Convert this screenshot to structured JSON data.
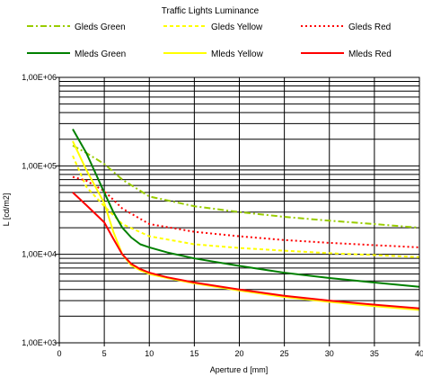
{
  "chart_data": {
    "type": "line",
    "title": "Traffic Lights Luminance",
    "xlabel": "Aperture d [mm]",
    "ylabel": "L [cd/m2]",
    "xlim": [
      0,
      40
    ],
    "ylim": [
      1000,
      1000000
    ],
    "yscale": "log",
    "grid": true,
    "legend_position": "top",
    "x_ticks": [
      0,
      5,
      10,
      15,
      20,
      25,
      30,
      35,
      40
    ],
    "x_tick_labels": [
      "0",
      "5",
      "10",
      "15",
      "20",
      "25",
      "30",
      "35",
      "40"
    ],
    "y_ticks": [
      1000,
      10000,
      100000,
      1000000
    ],
    "y_tick_labels": [
      "1,00E+03",
      "1,00E+04",
      "1,00E+05",
      "1,00E+06"
    ],
    "series": [
      {
        "name": "Gleds Green",
        "color": "#99cc00",
        "dash": "dashdot",
        "x": [
          1.5,
          3,
          5,
          7,
          10,
          15,
          20,
          25,
          30,
          35,
          40
        ],
        "y": [
          170000,
          140000,
          105000,
          70000,
          45000,
          35000,
          30000,
          26500,
          24000,
          22000,
          20000
        ]
      },
      {
        "name": "Gleds Yellow",
        "color": "#ffff00",
        "dash": "dash",
        "x": [
          1.5,
          3,
          5,
          7,
          10,
          15,
          20,
          25,
          30,
          35,
          40
        ],
        "y": [
          130000,
          58000,
          35000,
          22000,
          16000,
          13000,
          11800,
          11000,
          10300,
          9800,
          9300
        ]
      },
      {
        "name": "Gleds Red",
        "color": "#ff0000",
        "dash": "dot",
        "x": [
          1.5,
          3,
          5,
          7,
          10,
          15,
          20,
          25,
          30,
          35,
          40
        ],
        "y": [
          75000,
          68000,
          52000,
          33000,
          22000,
          18000,
          16000,
          14500,
          13500,
          12700,
          12000
        ]
      },
      {
        "name": "Mleds Green",
        "color": "#008000",
        "dash": "solid",
        "x": [
          1.5,
          3,
          5,
          6,
          7,
          8,
          9,
          10,
          12,
          15,
          20,
          25,
          30,
          35,
          40
        ],
        "y": [
          260000,
          140000,
          50000,
          30000,
          20000,
          15500,
          13000,
          12000,
          10500,
          9000,
          7400,
          6200,
          5400,
          4800,
          4300
        ]
      },
      {
        "name": "Mleds Yellow",
        "color": "#ffff00",
        "dash": "solid",
        "x": [
          1.5,
          3,
          5,
          6,
          7,
          8,
          9,
          10,
          12,
          15,
          20,
          25,
          30,
          35,
          40
        ],
        "y": [
          190000,
          90000,
          38000,
          18000,
          10000,
          7500,
          6600,
          6000,
          5400,
          4700,
          3900,
          3300,
          2900,
          2600,
          2350
        ]
      },
      {
        "name": "Mleds Red",
        "color": "#ff0000",
        "dash": "solid",
        "x": [
          1.5,
          3,
          5,
          6,
          7,
          8,
          9,
          10,
          12,
          15,
          20,
          25,
          30,
          35,
          40
        ],
        "y": [
          50000,
          36000,
          23000,
          15000,
          10000,
          7800,
          6800,
          6200,
          5500,
          4800,
          4000,
          3400,
          3000,
          2700,
          2450
        ]
      }
    ]
  }
}
